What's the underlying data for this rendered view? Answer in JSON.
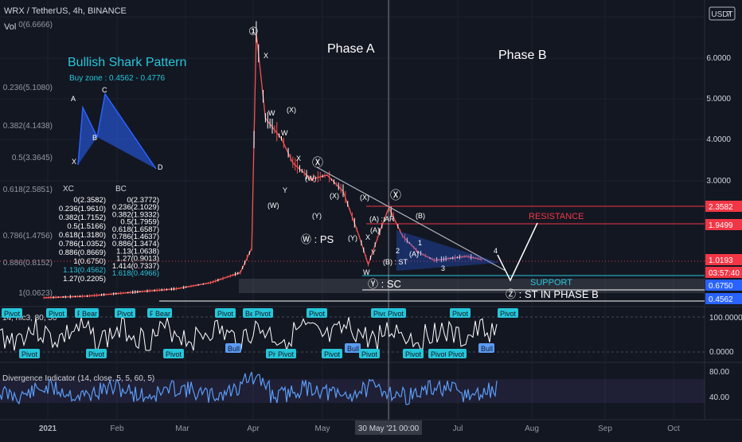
{
  "header": {
    "symbol_line": "WRX / TetherUS, 4h, BINANCE",
    "volume_label": "Vol",
    "currency_badge": "USDT"
  },
  "price_axis": {
    "ticks": [
      "7",
      "6.0000",
      "5.0000",
      "4.0000",
      "3.0000"
    ],
    "price_tags": [
      {
        "value": "2.3582",
        "color": "#f23645"
      },
      {
        "value": "1.9499",
        "color": "#f23645"
      },
      {
        "value": "1.0193",
        "color": "#f23645"
      },
      {
        "value": "03:57:40",
        "color": "#f23645"
      },
      {
        "value": "0.6750",
        "color": "#2962ff"
      },
      {
        "value": "0.4562",
        "color": "#2962ff"
      }
    ]
  },
  "time_axis": {
    "labels": [
      "2021",
      "Feb",
      "Mar",
      "Apr",
      "May",
      "Jun",
      "Jul",
      "Aug",
      "Sep",
      "Oct"
    ],
    "crosshair_label": "30 May '21  00:00"
  },
  "pattern": {
    "title": "Bullish Shark Pattern",
    "buy_zone": "Buy zone : 0.4562 - 0.4776",
    "points": [
      "A",
      "C",
      "B",
      "X",
      "D"
    ],
    "xc_header": "XC",
    "bc_header": "BC",
    "xc_levels": [
      "0(2.3582)",
      "0.236(1.9610)",
      "0.382(1.7152)",
      "0.5(1.5166)",
      "0.618(1.3180)",
      "0.786(1.0352)",
      "0.886(0.8669)",
      "1(0.6750)",
      "1.13(0.4562)",
      "1.27(0.2205)"
    ],
    "bc_levels": [
      "0(2.3772)",
      "0.236(2.1029)",
      "0.382(1.9332)",
      "0.5(1.7959)",
      "0.618(1.6587)",
      "0.786(1.4637)",
      "0.886(1.3474)",
      "1.13(1.0638)",
      "1.27(0.9013)",
      "1.414(0.7337)",
      "1.618(0.4966)"
    ]
  },
  "fib_left": [
    "0(6.6666)",
    "0.236(5.1080)",
    "0.382(4.1438)",
    "0.5(3.3645)",
    "0.618(2.5851)",
    "0.786(1.4756)",
    "0.886(0.8152)",
    "1(0.0623)"
  ],
  "annotations": {
    "phase_a": "Phase A",
    "phase_b": "Phase B",
    "resistance": "RESISTANCE",
    "support": "SUPPORT",
    "w_ps": "Ⓦ : PS",
    "y_sc": "Ⓨ : SC",
    "z_st": "Ⓩ : ST IN PHASE B",
    "ar": "(A) : AR",
    "st": "(B) : ST",
    "circled_1": "①",
    "circled_x1": "Ⓧ",
    "circled_x2": "Ⓧ",
    "wave_labels": [
      "X",
      "W",
      "(X)",
      "W",
      "X",
      "Y",
      "(W)",
      "(Y)",
      "(X)",
      "(W)",
      "(X)",
      "(Y)",
      "(B)",
      "(A)",
      "X",
      "W",
      "Y",
      "3",
      "1",
      "4",
      "(A)",
      "2"
    ]
  },
  "rsi_panel": {
    "label": "14, hlc3, 80, 50",
    "ticks": [
      "100.0000",
      "0.0000"
    ],
    "signals_top": [
      "Pivot",
      "Pivot",
      "Pivot",
      "Bear",
      "Pivot",
      "Pivot",
      "Bear",
      "Pivot",
      "Bear",
      "Pivot",
      "Pivot",
      "Pivot",
      "Pivot",
      "Pivot",
      "Pivot"
    ],
    "signals_bottom": [
      "Pivot",
      "Pivot",
      "Pivot",
      "Bull",
      "Pivot",
      "Pivot",
      "Pivot",
      "Bull",
      "Pivot",
      "Pivot",
      "Pivot",
      "Pivot",
      "Bull"
    ]
  },
  "div_panel": {
    "label": "Divergence Indicator (14, close, 5, 5, 60, 5)",
    "ticks": [
      "80.00",
      "40.00"
    ]
  },
  "chart_data": {
    "type": "line",
    "title": "WRX / TetherUS, 4h, BINANCE",
    "x": [
      "2021-01-01",
      "2021-01-20",
      "2021-02-10",
      "2021-02-28",
      "2021-03-15",
      "2021-03-28",
      "2021-04-02",
      "2021-04-04",
      "2021-04-08",
      "2021-04-15",
      "2021-04-20",
      "2021-04-28",
      "2021-05-05",
      "2021-05-12",
      "2021-05-19",
      "2021-05-23",
      "2021-05-28",
      "2021-06-01",
      "2021-06-07",
      "2021-06-14",
      "2021-06-21",
      "2021-06-28",
      "2021-07-05",
      "2021-07-12"
    ],
    "series": [
      {
        "values": [
          0.08,
          0.12,
          0.22,
          0.3,
          0.45,
          0.7,
          1.3,
          6.6,
          4.5,
          4.0,
          3.4,
          3.0,
          3.1,
          2.7,
          1.6,
          0.9,
          1.7,
          2.3,
          1.6,
          1.2,
          1.0,
          1.05,
          1.1,
          1.02
        ]
      }
    ],
    "ylim": [
      0.0,
      7.0
    ],
    "levels": {
      "resistance_1": 2.3582,
      "resistance_2": 1.9499,
      "current": 1.0193,
      "support": 0.675,
      "buy_zone_low": 0.4562
    },
    "grid": true,
    "legend": "none"
  }
}
